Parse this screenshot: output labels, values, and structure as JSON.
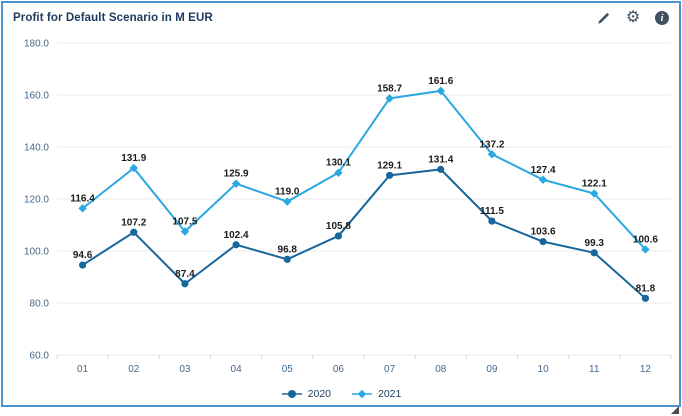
{
  "widget": {
    "title": "Profit for Default Scenario in M EUR",
    "toolbar": {
      "edit_icon": "pencil",
      "settings_icon": "gear",
      "info_icon": "info-circle",
      "settings_glyph": "⚙",
      "info_glyph": "i"
    }
  },
  "chart_data": {
    "type": "line",
    "title": "Profit for Default Scenario in M EUR",
    "xlabel": "",
    "ylabel": "",
    "categories": [
      "01",
      "02",
      "03",
      "04",
      "05",
      "06",
      "07",
      "08",
      "09",
      "10",
      "11",
      "12"
    ],
    "series": [
      {
        "name": "2020",
        "marker": "circle",
        "color": "#17669c",
        "values": [
          94.6,
          107.2,
          87.4,
          102.4,
          96.8,
          105.8,
          129.1,
          131.4,
          111.5,
          103.6,
          99.3,
          81.8
        ]
      },
      {
        "name": "2021",
        "marker": "diamond",
        "color": "#2aa8e0",
        "values": [
          116.4,
          131.9,
          107.5,
          125.9,
          119.0,
          130.1,
          158.7,
          161.6,
          137.2,
          127.4,
          122.1,
          100.6
        ]
      }
    ],
    "ylim": [
      60,
      180
    ],
    "ytick_step": 20,
    "yticks": [
      "180.0",
      "160.0",
      "140.0",
      "120.0",
      "100.0",
      "80.0",
      "60.0"
    ],
    "grid": true,
    "data_labels": true,
    "legend_position": "bottom"
  },
  "colors": {
    "card_border": "#4a94d2",
    "title_text": "#1b3a5c",
    "axis_text": "#44688c",
    "gridline": "#ebebeb",
    "axis_line": "#c9d9ea",
    "data_label": "#1c1c1c",
    "icon": "#3f5161",
    "series_2020": "#17669c",
    "series_2021": "#2aa8e0"
  }
}
